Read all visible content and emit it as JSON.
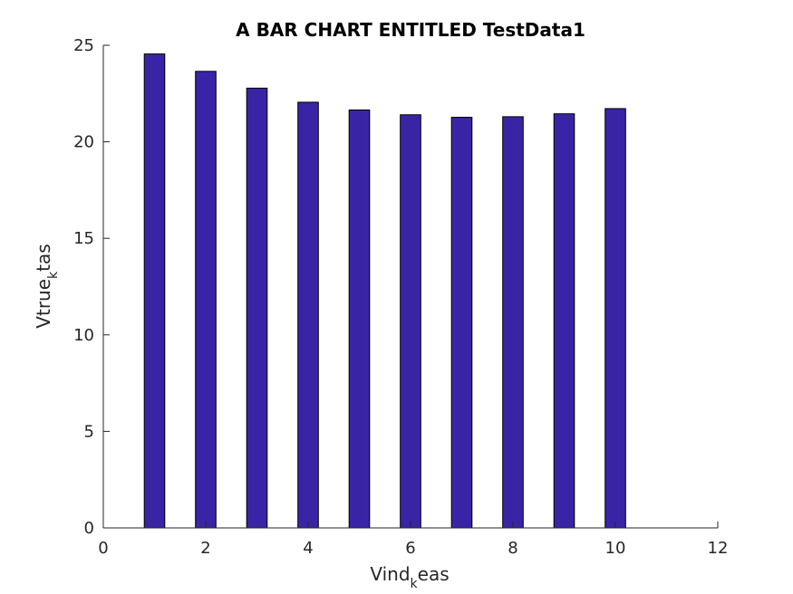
{
  "chart_data": {
    "type": "bar",
    "title": "A BAR CHART ENTITLED TestData1",
    "xlabel": {
      "base": "Vind",
      "sub": "k",
      "rest": "eas"
    },
    "ylabel": {
      "base": "Vtrue",
      "sub": "k",
      "rest": "tas"
    },
    "x": [
      1,
      2,
      3,
      4,
      5,
      6,
      7,
      8,
      9,
      10
    ],
    "values": [
      24.55,
      23.65,
      22.78,
      22.05,
      21.65,
      21.4,
      21.27,
      21.3,
      21.45,
      21.72
    ],
    "xlim": [
      0,
      12
    ],
    "ylim": [
      0,
      25
    ],
    "xticks": [
      0,
      2,
      4,
      6,
      8,
      10,
      12
    ],
    "yticks": [
      0,
      5,
      10,
      15,
      20,
      25
    ],
    "bar_color": "#3a24a6",
    "grid": false,
    "legend": "none"
  }
}
